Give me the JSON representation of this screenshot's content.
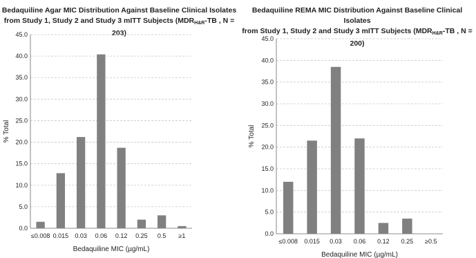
{
  "chart_data": [
    {
      "type": "bar",
      "title": {
        "line1": "Bedaquiline Agar MIC Distribution Against  Baseline Clinical  Isolates",
        "line2_pre": "from Study 1, Study 2 and Study 3 mITT Subjects (MDR",
        "line2_sub": "H&R",
        "line2_post": "-TB , N = 203)"
      },
      "xlabel": "Bedaquiline MIC (µg/mL)",
      "ylabel": "% Total",
      "categories": [
        "≤0.008",
        "0.015",
        "0.03",
        "0.06",
        "0.12",
        "0.25",
        "0.5",
        "≥1"
      ],
      "values": [
        1.5,
        12.8,
        21.2,
        40.4,
        18.7,
        2.0,
        3.0,
        0.5
      ],
      "ylim": [
        0,
        45
      ],
      "yticks": [
        "0.0",
        "5.0",
        "10.0",
        "15.0",
        "20.0",
        "25.0",
        "30.0",
        "35.0",
        "40.0",
        "45.0"
      ],
      "grid": true,
      "bar_color": "#808080"
    },
    {
      "type": "bar",
      "title": {
        "line1": "Bedaquiline REMA MIC Distribution Against  Baseline Clinical  Isolates",
        "line2_pre": "from Study 1, Study 2 and Study 3 mITT Subjects (MDR",
        "line2_sub": "H&R",
        "line2_post": "-TB , N = 200)"
      },
      "xlabel": "Bedaquiline MIC (µg/mL)",
      "ylabel": "% Total",
      "categories": [
        "≤0.008",
        "0.015",
        "0.03",
        "0.06",
        "0.12",
        "0.25",
        "≥0.5"
      ],
      "values": [
        12.0,
        21.5,
        38.5,
        22.0,
        2.5,
        3.5,
        0
      ],
      "ylim": [
        0,
        45
      ],
      "yticks": [
        "0.0",
        "5.0",
        "10.0",
        "15.0",
        "20.0",
        "25.0",
        "30.0",
        "35.0",
        "40.0",
        "45.0"
      ],
      "grid": true,
      "bar_color": "#808080"
    }
  ]
}
